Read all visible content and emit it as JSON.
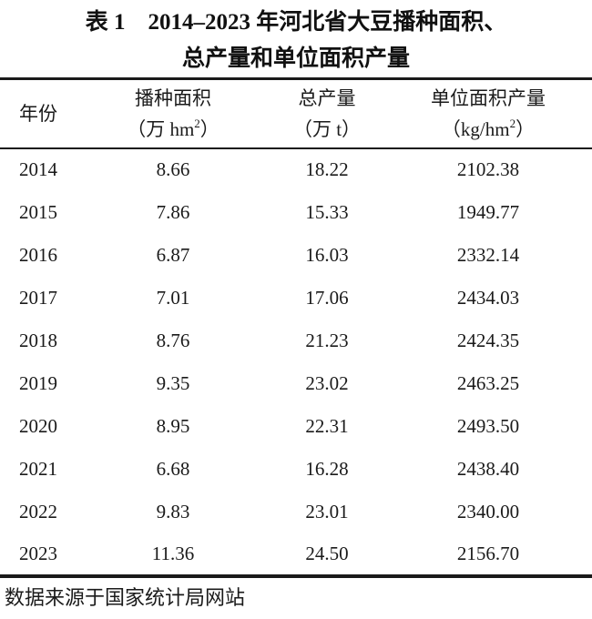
{
  "title": {
    "line1": "表 1　2014–2023 年河北省大豆播种面积、",
    "line2": "总产量和单位面积产量"
  },
  "table": {
    "columns": [
      {
        "label": "年份",
        "unit_prefix": "",
        "unit_sup": "",
        "unit_suffix": ""
      },
      {
        "label": "播种面积",
        "unit_prefix": "（万 hm",
        "unit_sup": "2",
        "unit_suffix": "）"
      },
      {
        "label": "总产量",
        "unit_prefix": "（万 t）",
        "unit_sup": "",
        "unit_suffix": ""
      },
      {
        "label": "单位面积产量",
        "unit_prefix": "（kg/hm",
        "unit_sup": "2",
        "unit_suffix": "）"
      }
    ],
    "rows": [
      {
        "year": "2014",
        "sown_area": "8.66",
        "total_output": "18.22",
        "yield_per_area": "2102.38"
      },
      {
        "year": "2015",
        "sown_area": "7.86",
        "total_output": "15.33",
        "yield_per_area": "1949.77"
      },
      {
        "year": "2016",
        "sown_area": "6.87",
        "total_output": "16.03",
        "yield_per_area": "2332.14"
      },
      {
        "year": "2017",
        "sown_area": "7.01",
        "total_output": "17.06",
        "yield_per_area": "2434.03"
      },
      {
        "year": "2018",
        "sown_area": "8.76",
        "total_output": "21.23",
        "yield_per_area": "2424.35"
      },
      {
        "year": "2019",
        "sown_area": "9.35",
        "total_output": "23.02",
        "yield_per_area": "2463.25"
      },
      {
        "year": "2020",
        "sown_area": "8.95",
        "total_output": "22.31",
        "yield_per_area": "2493.50"
      },
      {
        "year": "2021",
        "sown_area": "6.68",
        "total_output": "16.28",
        "yield_per_area": "2438.40"
      },
      {
        "year": "2022",
        "sown_area": "9.83",
        "total_output": "23.01",
        "yield_per_area": "2340.00"
      },
      {
        "year": "2023",
        "sown_area": "11.36",
        "total_output": "24.50",
        "yield_per_area": "2156.70"
      }
    ]
  },
  "footer": {
    "source_note": "数据来源于国家统计局网站"
  },
  "colors": {
    "text": "#1a1a1a",
    "rule": "#1a1a1a",
    "background": "#ffffff"
  }
}
